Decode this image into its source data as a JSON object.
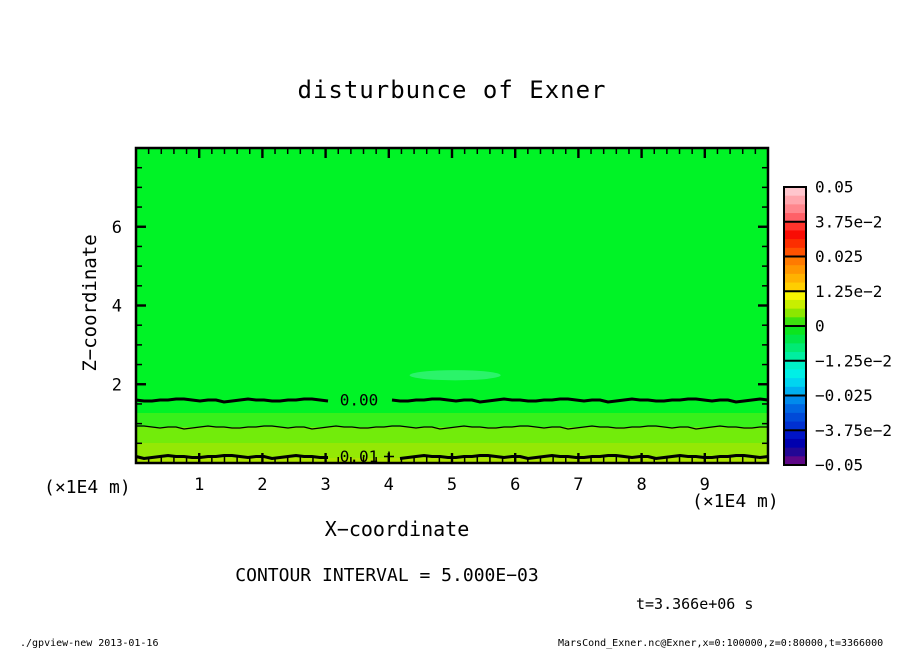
{
  "window": {
    "footer_left": "./gpview-new  2013-01-16",
    "footer_right": "MarsCond_Exner.nc@Exner,x=0:100000,z=0:80000,t=3366000"
  },
  "chart_data": {
    "type": "heatmap",
    "title": "disturbunce of Exner",
    "xlabel": "X−coordinate",
    "ylabel": "Z−coordinate",
    "x_unit_left": "(×1E4 m)",
    "x_unit_right": "(×1E4 m)",
    "contour_interval_label": "CONTOUR INTERVAL = 5.000E−03",
    "time_label": "t=3.366e+06 s",
    "xlim": [
      0,
      10
    ],
    "ylim": [
      0,
      8
    ],
    "x_ticks": [
      "1",
      "2",
      "3",
      "4",
      "5",
      "6",
      "7",
      "8",
      "9"
    ],
    "y_ticks": [
      "2",
      "4",
      "6"
    ],
    "x_minor_step": 0.2,
    "y_minor_step": 0.5,
    "grid": false,
    "field_main_color": "#00f326",
    "bands": [
      {
        "z_from": 1.27,
        "z_to": 8,
        "value": "≈ 0",
        "color": "#00f326"
      },
      {
        "z_from": 0.914,
        "z_to": 1.27,
        "value": "0 … 5.0e-3",
        "color": "#38f01b"
      },
      {
        "z_from": 0.508,
        "z_to": 0.914,
        "value": "5.0e-3",
        "color": "#72ec0b"
      },
      {
        "z_from": 0.127,
        "z_to": 0.508,
        "value": "≈ 1.0e-2",
        "color": "#94e805"
      },
      {
        "z_from": 0,
        "z_to": 0.127,
        "value": "> 1.0e-2",
        "color": "#aee400"
      }
    ],
    "contours": [
      {
        "label": "0.00",
        "value": 0.0,
        "z": 1.6,
        "thick": true,
        "labeled": true,
        "plus_after_label": false
      },
      {
        "label": "",
        "value": 0.005,
        "z": 0.914,
        "thick": false,
        "labeled": false,
        "plus_after_label": false
      },
      {
        "label": "0.01",
        "value": 0.01,
        "z": 0.165,
        "thick": true,
        "labeled": true,
        "plus_after_label": true
      }
    ],
    "anomaly_patch": {
      "x": 5.05,
      "z": 2.23,
      "rx_units": 0.72,
      "rz_units": 0.13,
      "color": "#36f37c"
    },
    "colorbar": {
      "labels": [
        "0.05",
        "3.75e−2",
        "0.025",
        "1.25e−2",
        "0",
        "−1.25e−2",
        "−0.025",
        "−3.75e−2",
        "−0.05"
      ],
      "cell_colors": [
        "#ffc6cd",
        "#ffa6ad",
        "#ff868d",
        "#ff6067",
        "#ff342c",
        "#f90c04",
        "#fc2e00",
        "#ff5200",
        "#ff7a00",
        "#ff9600",
        "#ffb200",
        "#ffce00",
        "#f7f500",
        "#c8ef00",
        "#8ce700",
        "#3ce20e",
        "#0ce51e",
        "#00e648",
        "#00ea74",
        "#00eea0",
        "#00f0c6",
        "#00efe6",
        "#00d5f0",
        "#00aff0",
        "#008aec",
        "#0066e2",
        "#004ad8",
        "#0030d0",
        "#0014c6",
        "#0000ae",
        "#230795",
        "#5e0787"
      ]
    }
  }
}
